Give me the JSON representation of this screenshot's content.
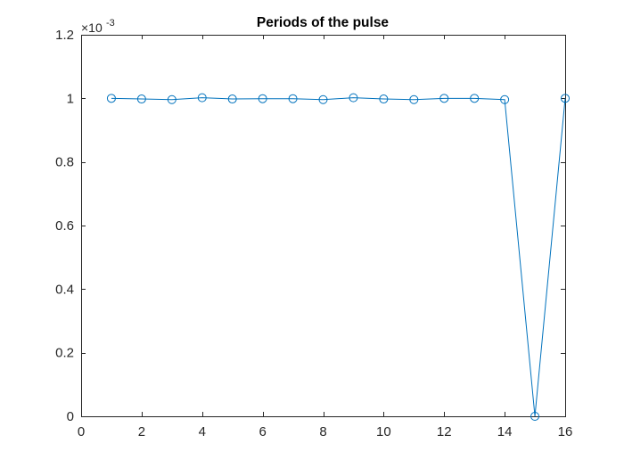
{
  "chart_data": {
    "type": "line",
    "title": "Periods of the pulse",
    "xlabel": "",
    "ylabel": "",
    "xlim": [
      0,
      16
    ],
    "ylim": [
      0,
      1.2
    ],
    "y_exponent_label": {
      "times": "×10",
      "power": "-3"
    },
    "x_ticks": [
      0,
      2,
      4,
      6,
      8,
      10,
      12,
      14,
      16
    ],
    "x_tick_labels": [
      "0",
      "2",
      "4",
      "6",
      "8",
      "10",
      "12",
      "14",
      "16"
    ],
    "y_ticks": [
      0,
      0.2,
      0.4,
      0.6,
      0.8,
      1,
      1.2
    ],
    "y_tick_labels": [
      "0",
      "0.2",
      "0.4",
      "0.6",
      "0.8",
      "1",
      "1.2"
    ],
    "grid": false,
    "legend": "none",
    "marker": "circle",
    "series": [
      {
        "color": "#0072BD",
        "x": [
          1,
          2,
          3,
          4,
          5,
          6,
          7,
          8,
          9,
          10,
          11,
          12,
          13,
          14,
          15,
          16
        ],
        "y": [
          1.0,
          0.998,
          0.996,
          1.002,
          0.998,
          0.999,
          0.999,
          0.996,
          1.002,
          0.998,
          0.996,
          1.0,
          1.0,
          0.996,
          0.0,
          1.0
        ]
      }
    ],
    "axis_color": "#262626"
  }
}
